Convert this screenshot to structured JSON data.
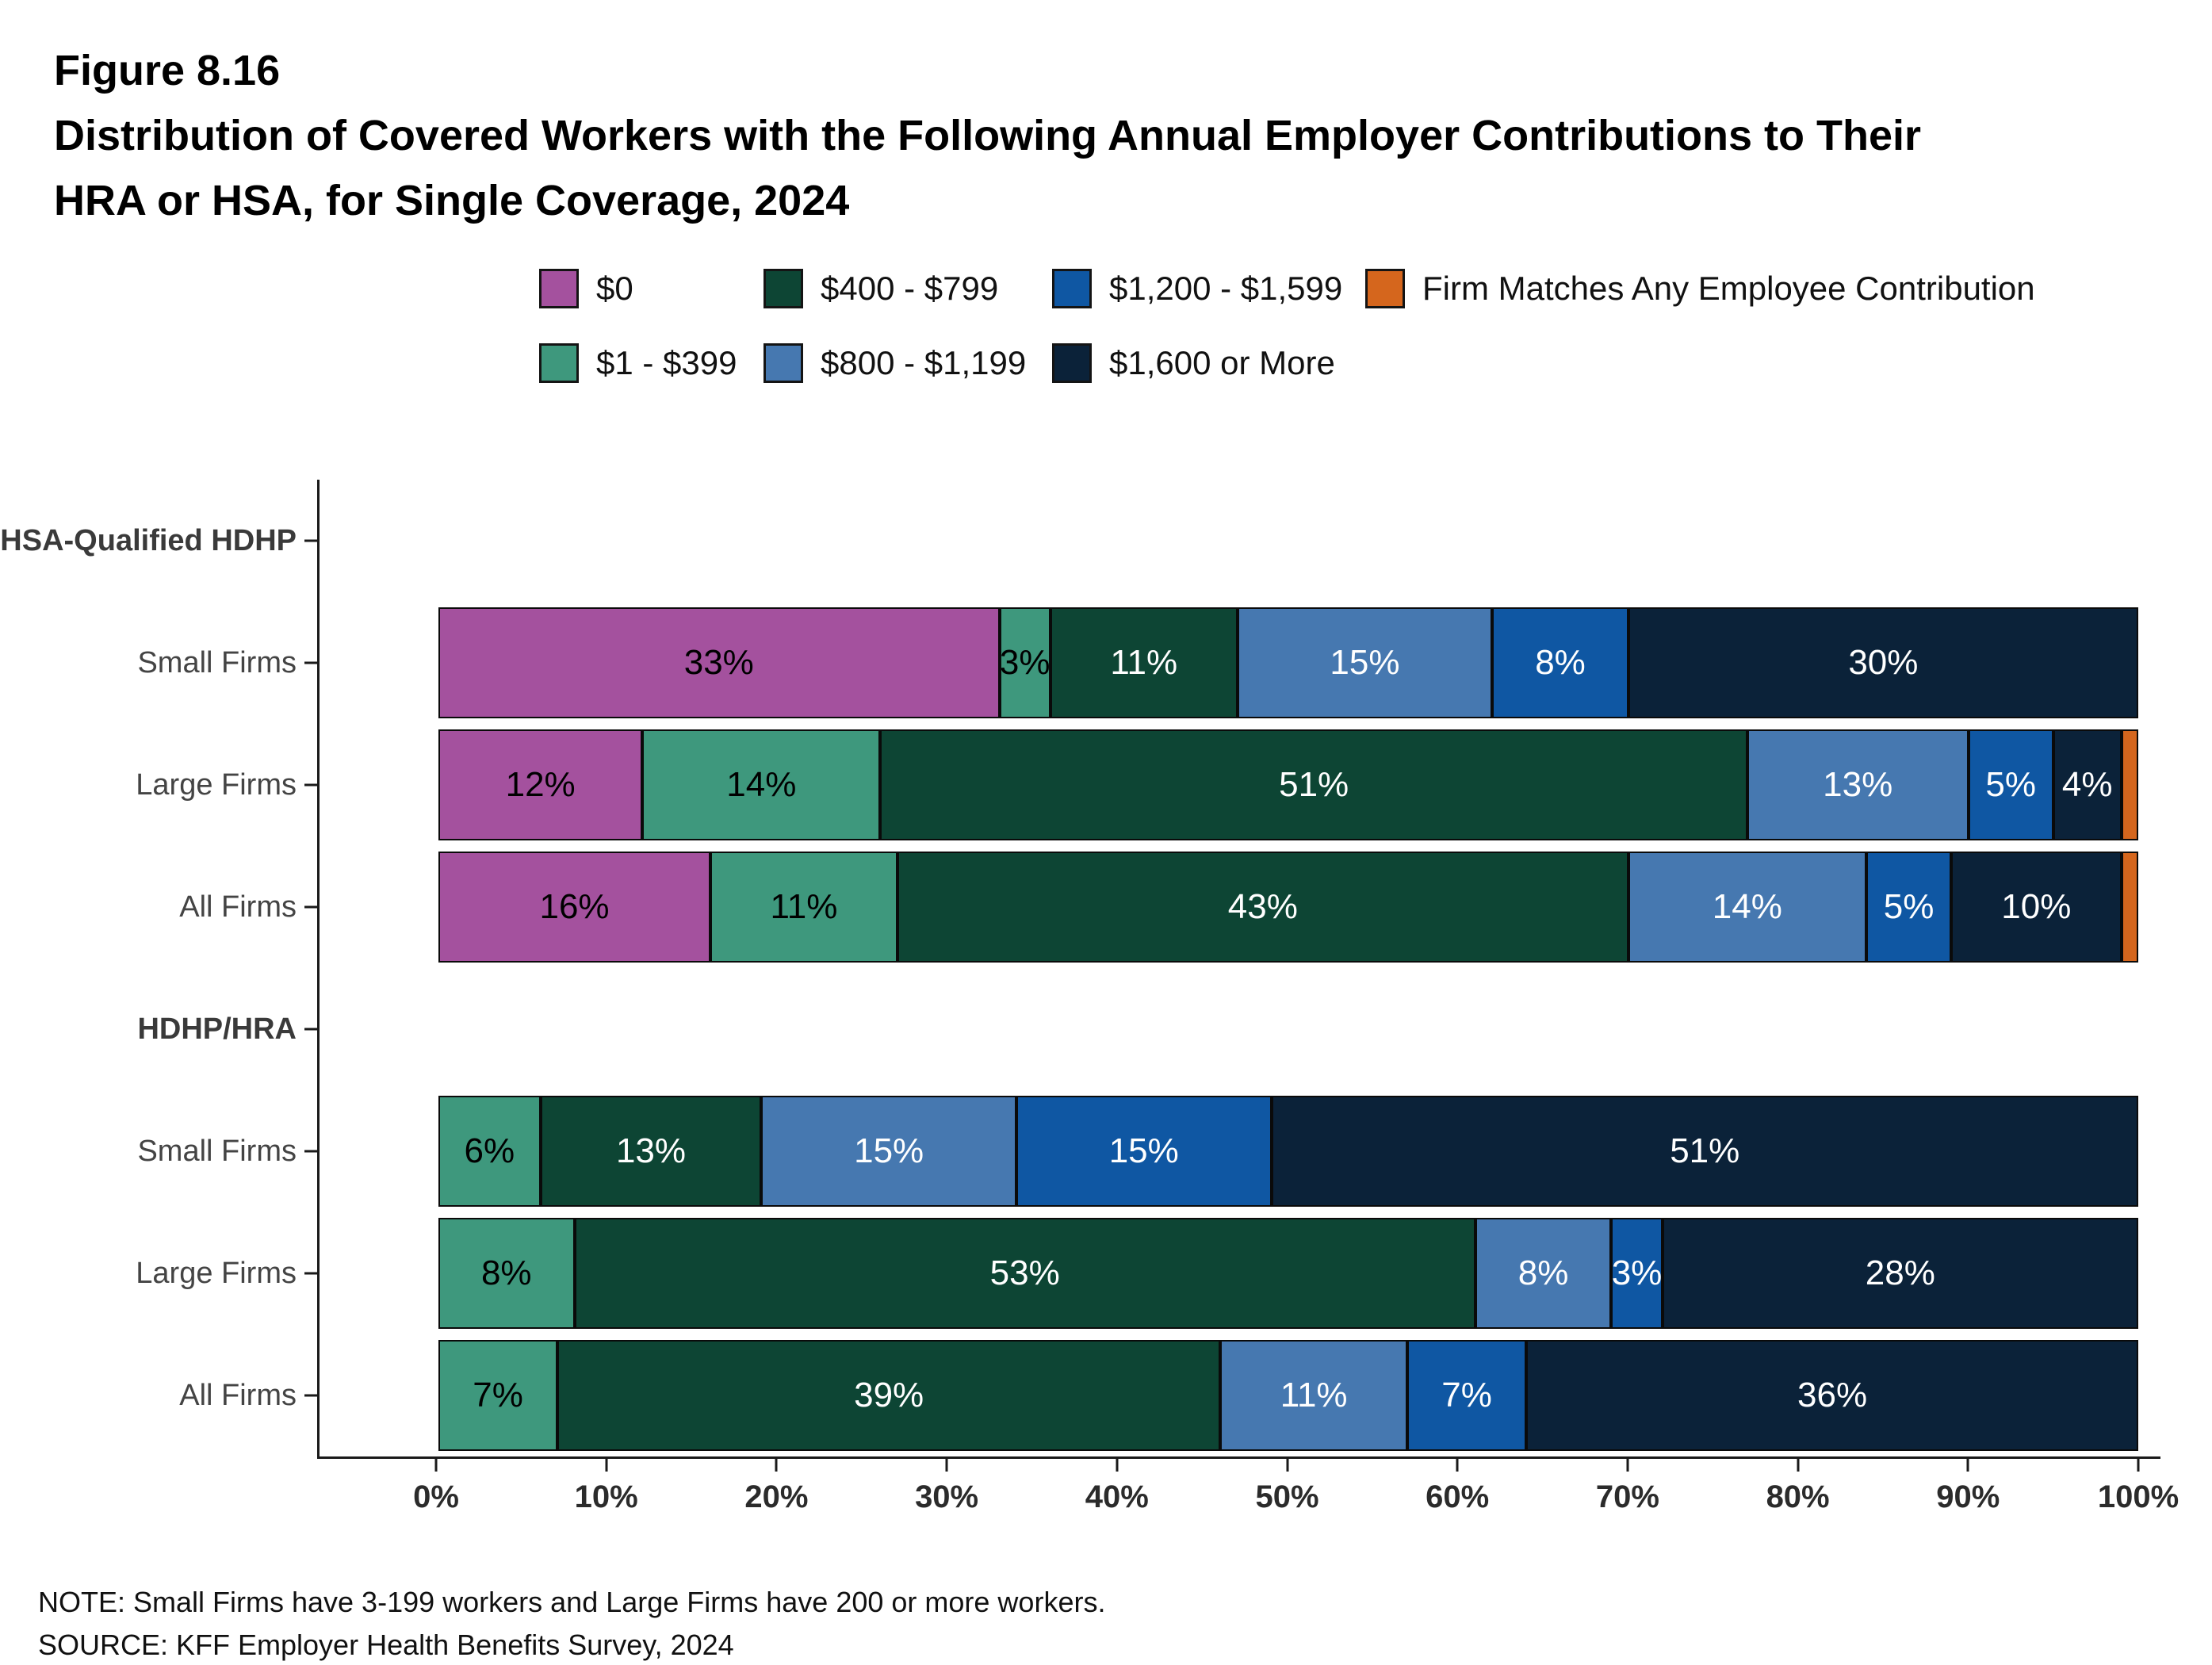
{
  "header": {
    "figure_label": "Figure 8.16",
    "title_line1": "Distribution of Covered Workers with the Following Annual Employer Contributions to Their",
    "title_line2": "HRA or HSA, for Single Coverage, 2024"
  },
  "footer": {
    "note": "NOTE: Small Firms have 3-199 workers and Large Firms have 200 or more workers.",
    "source": "SOURCE: KFF Employer Health Benefits Survey, 2024"
  },
  "chart_data": {
    "type": "bar",
    "orientation": "horizontal",
    "stacked": true,
    "unit": "%",
    "x_axis": {
      "range": [
        0,
        100
      ],
      "ticks": [
        "0%",
        "10%",
        "20%",
        "30%",
        "40%",
        "50%",
        "60%",
        "70%",
        "80%",
        "90%",
        "100%"
      ]
    },
    "legend": [
      {
        "label": "$0",
        "color": "#a4519e",
        "text_color": "#000000"
      },
      {
        "label": "$1 - $399",
        "color": "#3e987d",
        "text_color": "#000000"
      },
      {
        "label": "$400 - $799",
        "color": "#0d4534",
        "text_color": "#ffffff"
      },
      {
        "label": "$800 - $1,199",
        "color": "#4678b0",
        "text_color": "#ffffff"
      },
      {
        "label": "$1,200 - $1,599",
        "color": "#0f57a3",
        "text_color": "#ffffff"
      },
      {
        "label": "$1,600 or More",
        "color": "#0b2239",
        "text_color": "#ffffff"
      },
      {
        "label": "Firm Matches Any Employee Contribution",
        "color": "#d5661d",
        "text_color": "#ffffff"
      }
    ],
    "groups": [
      {
        "header": "HSA-Qualified HDHP",
        "rows": [
          {
            "label": "Small Firms",
            "segments": [
              {
                "category": "$0",
                "value": 33,
                "text": "33%"
              },
              {
                "category": "$1 - $399",
                "value": 3,
                "text": "3%"
              },
              {
                "category": "$400 - $799",
                "value": 11,
                "text": "11%"
              },
              {
                "category": "$800 - $1,199",
                "value": 15,
                "text": "15%"
              },
              {
                "category": "$1,200 - $1,599",
                "value": 8,
                "text": "8%"
              },
              {
                "category": "$1,600 or More",
                "value": 30,
                "text": "30%"
              }
            ]
          },
          {
            "label": "Large Firms",
            "segments": [
              {
                "category": "$0",
                "value": 12,
                "text": "12%"
              },
              {
                "category": "$1 - $399",
                "value": 14,
                "text": "14%"
              },
              {
                "category": "$400 - $799",
                "value": 51,
                "text": "51%"
              },
              {
                "category": "$800 - $1,199",
                "value": 13,
                "text": "13%"
              },
              {
                "category": "$1,200 - $1,599",
                "value": 5,
                "text": "5%"
              },
              {
                "category": "$1,600 or More",
                "value": 4,
                "text": "4%"
              },
              {
                "category": "Firm Matches Any Employee Contribution",
                "value": 1,
                "text": ""
              }
            ]
          },
          {
            "label": "All Firms",
            "segments": [
              {
                "category": "$0",
                "value": 16,
                "text": "16%"
              },
              {
                "category": "$1 - $399",
                "value": 11,
                "text": "11%"
              },
              {
                "category": "$400 - $799",
                "value": 43,
                "text": "43%"
              },
              {
                "category": "$800 - $1,199",
                "value": 14,
                "text": "14%"
              },
              {
                "category": "$1,200 - $1,599",
                "value": 5,
                "text": "5%"
              },
              {
                "category": "$1,600 or More",
                "value": 10,
                "text": "10%"
              },
              {
                "category": "Firm Matches Any Employee Contribution",
                "value": 1,
                "text": ""
              }
            ]
          }
        ]
      },
      {
        "header": "HDHP/HRA",
        "rows": [
          {
            "label": "Small Firms",
            "segments": [
              {
                "category": "$1 - $399",
                "value": 6,
                "text": "6%"
              },
              {
                "category": "$400 - $799",
                "value": 13,
                "text": "13%"
              },
              {
                "category": "$800 - $1,199",
                "value": 15,
                "text": "15%"
              },
              {
                "category": "$1,200 - $1,599",
                "value": 15,
                "text": "15%"
              },
              {
                "category": "$1,600 or More",
                "value": 51,
                "text": "51%"
              }
            ]
          },
          {
            "label": "Large Firms",
            "segments": [
              {
                "category": "$1 - $399",
                "value": 8,
                "text": "8%"
              },
              {
                "category": "$400 - $799",
                "value": 53,
                "text": "53%"
              },
              {
                "category": "$800 - $1,199",
                "value": 8,
                "text": "8%"
              },
              {
                "category": "$1,200 - $1,599",
                "value": 3,
                "text": "3%"
              },
              {
                "category": "$1,600 or More",
                "value": 28,
                "text": "28%"
              }
            ]
          },
          {
            "label": "All Firms",
            "segments": [
              {
                "category": "$1 - $399",
                "value": 7,
                "text": "7%"
              },
              {
                "category": "$400 - $799",
                "value": 39,
                "text": "39%"
              },
              {
                "category": "$800 - $1,199",
                "value": 11,
                "text": "11%"
              },
              {
                "category": "$1,200 - $1,599",
                "value": 7,
                "text": "7%"
              },
              {
                "category": "$1,600 or More",
                "value": 36,
                "text": "36%"
              }
            ]
          }
        ]
      }
    ]
  }
}
